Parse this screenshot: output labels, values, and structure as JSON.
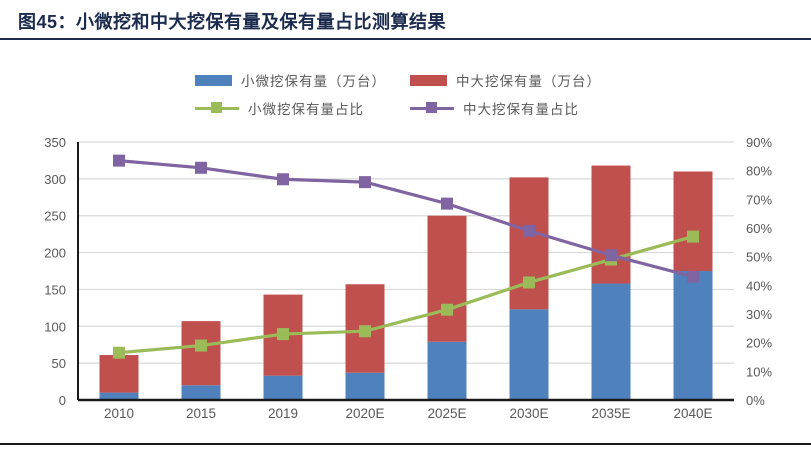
{
  "header": {
    "title": "图45：小微挖和中大挖保有量及保有量占比测算结果"
  },
  "colors": {
    "title": "#1B2B4D",
    "bar_small": "#4F81BD",
    "bar_large": "#C0504D",
    "line_small": "#9BBB59",
    "line_large": "#8064A2",
    "axis_text": "#595959",
    "gridline": "#D9D9D9",
    "axis_line": "#1a1a1a"
  },
  "legend": {
    "items": [
      {
        "label": "小微挖保有量（万台）",
        "type": "bar",
        "color": "#4F81BD"
      },
      {
        "label": "中大挖保有量（万台）",
        "type": "bar",
        "color": "#C0504D"
      },
      {
        "label": "小微挖保有量占比",
        "type": "line",
        "color": "#9BBB59"
      },
      {
        "label": "中大挖保有量占比",
        "type": "line",
        "color": "#8064A2"
      }
    ]
  },
  "chart_data": {
    "type": "bar",
    "subtype": "stacked-bars-with-lines-dual-axis",
    "grid": true,
    "legend_position": "top",
    "categories": [
      "2010",
      "2015",
      "2019",
      "2020E",
      "2025E",
      "2030E",
      "2035E",
      "2040E"
    ],
    "series": [
      {
        "name": "小微挖保有量（万台）",
        "kind": "bar",
        "stack": true,
        "axis": "left",
        "color": "#4F81BD",
        "values": [
          10,
          20,
          33,
          37,
          79,
          123,
          158,
          175
        ]
      },
      {
        "name": "中大挖保有量（万台）",
        "kind": "bar",
        "stack": true,
        "axis": "left",
        "color": "#C0504D",
        "values": [
          51,
          87,
          110,
          120,
          171,
          179,
          160,
          135
        ]
      },
      {
        "name": "小微挖保有量占比",
        "kind": "line",
        "axis": "right",
        "unit": "%",
        "color": "#9BBB59",
        "values": [
          16.5,
          19,
          23,
          24,
          31.5,
          41,
          49,
          57
        ]
      },
      {
        "name": "中大挖保有量占比",
        "kind": "line",
        "axis": "right",
        "unit": "%",
        "color": "#8064A2",
        "values": [
          83.5,
          81,
          77,
          76,
          68.5,
          59,
          50.5,
          43
        ]
      }
    ],
    "left_axis": {
      "min": 0,
      "max": 350,
      "step": 50,
      "tick_labels": [
        "0",
        "50",
        "100",
        "150",
        "200",
        "250",
        "300",
        "350"
      ]
    },
    "right_axis": {
      "min": 0,
      "max": 90,
      "step": 10,
      "tick_labels": [
        "0%",
        "10%",
        "20%",
        "30%",
        "40%",
        "50%",
        "60%",
        "70%",
        "80%",
        "90%"
      ]
    }
  }
}
